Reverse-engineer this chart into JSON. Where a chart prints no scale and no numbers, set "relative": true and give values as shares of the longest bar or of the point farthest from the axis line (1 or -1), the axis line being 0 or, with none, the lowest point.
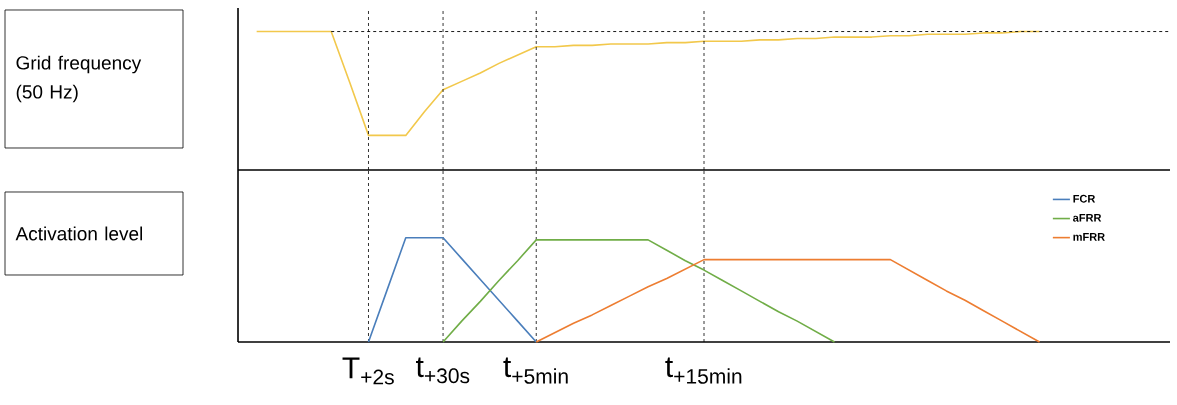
{
  "chart_data": [
    {
      "type": "line",
      "ylabel": "Grid frequency (50 Hz)",
      "relative": true,
      "tick_labels": false,
      "legend": false,
      "categories": [
        null,
        null,
        null,
        null,
        null,
        null,
        null,
        "T$_{+2s}$",
        null,
        null,
        null,
        "t$_{+30s}$",
        null,
        null,
        null,
        null,
        "t$_{+5min}$",
        null,
        null,
        null,
        null,
        null,
        null,
        null,
        null,
        "t$_{+15min}$",
        null,
        null,
        null,
        null,
        null,
        null,
        null,
        null,
        null,
        null,
        null,
        null,
        null,
        null,
        null,
        null,
        null,
        null,
        null,
        null,
        null,
        null,
        null,
        null,
        null
      ],
      "series": [
        {
          "color": "#f2c84b",
          "values": [
            null,
            1,
            1,
            1,
            1,
            1,
            0.63,
            0.25,
            0.25,
            0.25,
            0.42,
            0.58,
            0.64,
            0.7,
            0.77,
            0.83,
            0.89,
            0.89,
            0.9,
            0.9,
            0.91,
            0.91,
            0.91,
            0.92,
            0.92,
            0.93,
            0.93,
            0.93,
            0.94,
            0.94,
            0.95,
            0.95,
            0.96,
            0.96,
            0.96,
            0.97,
            0.97,
            0.98,
            0.98,
            0.98,
            0.99,
            0.99,
            1,
            1,
            null,
            null,
            null,
            null,
            null,
            null,
            null
          ]
        },
        {
          "color": "#000000",
          "line_style": "dashed",
          "values": [
            null,
            null,
            null,
            null,
            null,
            1,
            1,
            1,
            1,
            1,
            1,
            1,
            1,
            1,
            1,
            1,
            1,
            1,
            1,
            1,
            1,
            1,
            1,
            1,
            1,
            1,
            1,
            1,
            1,
            1,
            1,
            1,
            1,
            1,
            1,
            1,
            1,
            1,
            1,
            1,
            1,
            1,
            1,
            1,
            1,
            1,
            1,
            1,
            1,
            1,
            1
          ]
        }
      ],
      "ref_lines": [
        {
          "axis": "x",
          "value": "T$_{+2s}$",
          "line_style": "dashed",
          "color": "#000000"
        },
        {
          "axis": "x",
          "value": "t$_{+30s}$",
          "line_style": "dashed",
          "color": "#000000"
        },
        {
          "axis": "x",
          "value": "t$_{+5min}$",
          "line_style": "dashed",
          "color": "#000000"
        },
        {
          "axis": "x",
          "value": "t$_{+15min}$",
          "line_style": "dashed",
          "color": "#000000"
        }
      ]
    },
    {
      "type": "line",
      "ylabel": "Activation level",
      "relative": true,
      "legend": "top right",
      "grid": "x",
      "categories": [
        null,
        null,
        null,
        null,
        null,
        null,
        null,
        "T$_{+2s}$",
        null,
        null,
        null,
        "t$_{+30s}$",
        null,
        null,
        null,
        null,
        "t$_{+5min}$",
        null,
        null,
        null,
        null,
        null,
        null,
        null,
        null,
        "t$_{+15min}$",
        null,
        null,
        null,
        null,
        null,
        null,
        null,
        null,
        null,
        null,
        null,
        null,
        null,
        null,
        null,
        null,
        null,
        null,
        null,
        null,
        null,
        null,
        null,
        null,
        null
      ],
      "series": [
        {
          "name": "FCR",
          "color": "#4a7ebb",
          "values": [
            null,
            null,
            null,
            null,
            null,
            null,
            null,
            0,
            0.5,
            1,
            1,
            1,
            0.8,
            0.6,
            0.4,
            0.2,
            0,
            null,
            null,
            null,
            null,
            null,
            null,
            null,
            null,
            null,
            null,
            null,
            null,
            null,
            null,
            null,
            null,
            null,
            null,
            null,
            null,
            null,
            null,
            null,
            null,
            null,
            null,
            null,
            null,
            null,
            null,
            null,
            null,
            null,
            null
          ]
        },
        {
          "name": "aFRR",
          "color": "#70ad47",
          "values": [
            null,
            null,
            null,
            null,
            null,
            null,
            null,
            null,
            null,
            null,
            null,
            0,
            0.2,
            0.39,
            0.59,
            0.78,
            0.98,
            0.98,
            0.98,
            0.98,
            0.98,
            0.98,
            0.98,
            0.88,
            0.78,
            0.69,
            0.59,
            0.49,
            0.39,
            0.29,
            0.2,
            0.1,
            0,
            null,
            null,
            null,
            null,
            null,
            null,
            null,
            null,
            null,
            null,
            null,
            null,
            null,
            null,
            null,
            null,
            null,
            null
          ]
        },
        {
          "name": "mFRR",
          "color": "#ed7d31",
          "values": [
            null,
            null,
            null,
            null,
            null,
            null,
            null,
            null,
            null,
            null,
            null,
            null,
            null,
            null,
            null,
            null,
            0,
            0.09,
            0.18,
            0.26,
            0.35,
            0.44,
            0.53,
            0.61,
            0.7,
            0.79,
            0.79,
            0.79,
            0.79,
            0.79,
            0.79,
            0.79,
            0.79,
            0.79,
            0.79,
            0.79,
            0.69,
            0.59,
            0.49,
            0.4,
            0.3,
            0.2,
            0.1,
            0,
            null,
            null,
            null,
            null,
            null,
            null,
            null
          ]
        }
      ]
    }
  ]
}
